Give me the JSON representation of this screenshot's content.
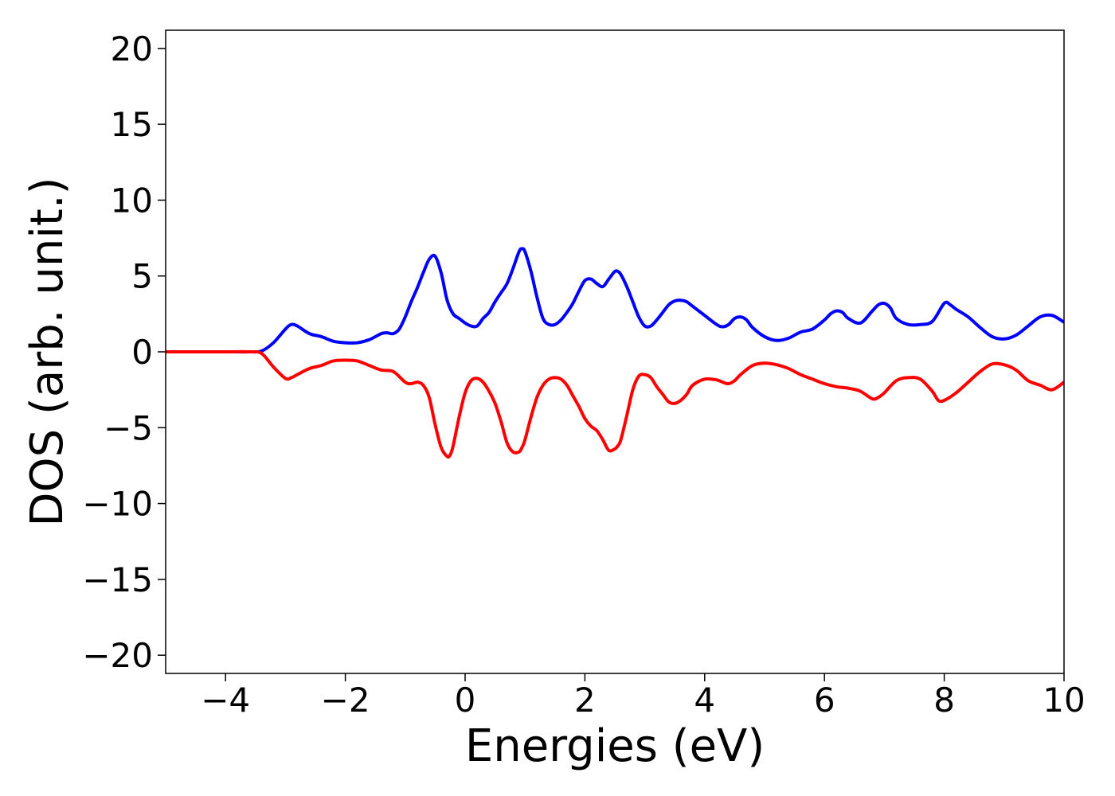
{
  "chart_data": {
    "type": "line",
    "title": "",
    "xlabel": "Energies (eV)",
    "ylabel": "DOS (arb. unit.)",
    "xlim": [
      -5,
      10
    ],
    "ylim": [
      -21.2,
      21.2
    ],
    "xticks": [
      -4,
      -2,
      0,
      2,
      4,
      6,
      8,
      10
    ],
    "xtick_labels": [
      "−4",
      "−2",
      "0",
      "2",
      "4",
      "6",
      "8",
      "10"
    ],
    "yticks": [
      20,
      15,
      10,
      5,
      0,
      -5,
      -10,
      -15,
      -20
    ],
    "ytick_labels": [
      "20",
      "15",
      "10",
      "5",
      "0",
      "−5",
      "−10",
      "−15",
      "−20"
    ],
    "grid": false,
    "legend": "none",
    "series": [
      {
        "color": "#0000ff",
        "x": [
          -5,
          -4,
          -3.6,
          -3.4,
          -3.2,
          -3.0,
          -2.9,
          -2.8,
          -2.6,
          -2.4,
          -2.2,
          -2.0,
          -1.8,
          -1.6,
          -1.4,
          -1.3,
          -1.2,
          -1.1,
          -1.0,
          -0.9,
          -0.8,
          -0.7,
          -0.6,
          -0.5,
          -0.4,
          -0.3,
          -0.2,
          -0.1,
          0.0,
          0.1,
          0.2,
          0.3,
          0.4,
          0.5,
          0.6,
          0.7,
          0.8,
          0.9,
          0.95,
          1.0,
          1.1,
          1.2,
          1.3,
          1.4,
          1.5,
          1.6,
          1.7,
          1.8,
          1.9,
          2.0,
          2.1,
          2.2,
          2.3,
          2.4,
          2.5,
          2.55,
          2.6,
          2.7,
          2.8,
          2.9,
          3.0,
          3.1,
          3.2,
          3.3,
          3.4,
          3.5,
          3.6,
          3.7,
          3.8,
          4.0,
          4.2,
          4.3,
          4.4,
          4.5,
          4.6,
          4.7,
          4.8,
          5.0,
          5.2,
          5.4,
          5.6,
          5.8,
          6.0,
          6.1,
          6.2,
          6.3,
          6.4,
          6.6,
          6.8,
          6.9,
          7.0,
          7.1,
          7.2,
          7.4,
          7.6,
          7.8,
          8.0,
          8.1,
          8.2,
          8.4,
          8.6,
          8.8,
          9.0,
          9.2,
          9.4,
          9.6,
          9.8,
          10.0
        ],
        "y": [
          0,
          0,
          0,
          0.05,
          0.6,
          1.5,
          1.8,
          1.7,
          1.2,
          1.0,
          0.7,
          0.6,
          0.6,
          0.8,
          1.2,
          1.25,
          1.2,
          1.5,
          2.3,
          3.3,
          4.2,
          5.2,
          6.1,
          6.3,
          5.2,
          3.4,
          2.5,
          2.2,
          1.9,
          1.7,
          1.7,
          2.2,
          2.6,
          3.3,
          3.9,
          4.5,
          5.5,
          6.6,
          6.8,
          6.6,
          5.3,
          3.6,
          2.2,
          1.8,
          1.8,
          2.1,
          2.6,
          3.2,
          4.0,
          4.7,
          4.8,
          4.5,
          4.3,
          4.8,
          5.3,
          5.3,
          5.1,
          4.3,
          3.3,
          2.3,
          1.7,
          1.7,
          2.1,
          2.6,
          3.1,
          3.35,
          3.4,
          3.3,
          3.0,
          2.4,
          1.8,
          1.65,
          1.8,
          2.2,
          2.3,
          2.1,
          1.6,
          1.0,
          0.75,
          0.9,
          1.3,
          1.5,
          2.1,
          2.5,
          2.7,
          2.6,
          2.2,
          1.9,
          2.7,
          3.1,
          3.2,
          2.9,
          2.2,
          1.8,
          1.8,
          2.0,
          3.2,
          3.1,
          2.8,
          2.3,
          1.6,
          1.0,
          0.85,
          1.1,
          1.7,
          2.3,
          2.4,
          1.95
        ]
      },
      {
        "color": "#ff0000",
        "x": [
          -5,
          -4,
          -3.6,
          -3.4,
          -3.2,
          -3.0,
          -2.9,
          -2.8,
          -2.6,
          -2.4,
          -2.2,
          -2.0,
          -1.8,
          -1.6,
          -1.4,
          -1.2,
          -1.0,
          -0.9,
          -0.8,
          -0.7,
          -0.6,
          -0.5,
          -0.4,
          -0.3,
          -0.25,
          -0.2,
          -0.1,
          0.0,
          0.1,
          0.2,
          0.3,
          0.4,
          0.5,
          0.6,
          0.7,
          0.8,
          0.9,
          0.95,
          1.0,
          1.1,
          1.2,
          1.3,
          1.4,
          1.5,
          1.6,
          1.7,
          1.8,
          1.9,
          2.0,
          2.1,
          2.2,
          2.3,
          2.4,
          2.5,
          2.55,
          2.6,
          2.7,
          2.8,
          2.9,
          3.0,
          3.1,
          3.2,
          3.3,
          3.4,
          3.5,
          3.6,
          3.7,
          3.8,
          4.0,
          4.2,
          4.3,
          4.4,
          4.5,
          4.6,
          4.8,
          5.0,
          5.2,
          5.4,
          5.6,
          5.8,
          6.0,
          6.2,
          6.4,
          6.6,
          6.8,
          6.9,
          7.0,
          7.2,
          7.4,
          7.6,
          7.8,
          7.9,
          8.0,
          8.2,
          8.4,
          8.6,
          8.8,
          9.0,
          9.2,
          9.4,
          9.6,
          9.8,
          10.0
        ],
        "y": [
          0,
          0,
          0,
          -0.1,
          -1.0,
          -1.75,
          -1.7,
          -1.5,
          -1.1,
          -0.9,
          -0.6,
          -0.55,
          -0.6,
          -0.9,
          -1.2,
          -1.3,
          -2.0,
          -2.1,
          -2.0,
          -2.2,
          -3.0,
          -4.8,
          -6.3,
          -6.9,
          -6.8,
          -6.2,
          -4.3,
          -2.7,
          -1.9,
          -1.75,
          -2.0,
          -2.6,
          -3.4,
          -4.6,
          -6.0,
          -6.6,
          -6.6,
          -6.3,
          -5.8,
          -4.3,
          -3.0,
          -2.2,
          -1.8,
          -1.7,
          -1.8,
          -2.2,
          -2.9,
          -3.6,
          -4.4,
          -4.9,
          -5.2,
          -5.8,
          -6.5,
          -6.4,
          -6.2,
          -5.8,
          -4.2,
          -2.5,
          -1.6,
          -1.5,
          -1.7,
          -2.3,
          -2.8,
          -3.3,
          -3.4,
          -3.2,
          -2.8,
          -2.2,
          -1.8,
          -1.85,
          -2.0,
          -2.1,
          -1.9,
          -1.5,
          -0.9,
          -0.75,
          -0.85,
          -1.1,
          -1.5,
          -1.8,
          -2.1,
          -2.3,
          -2.4,
          -2.6,
          -3.1,
          -3.0,
          -2.7,
          -1.9,
          -1.7,
          -1.8,
          -2.6,
          -3.2,
          -3.2,
          -2.7,
          -2.0,
          -1.3,
          -0.8,
          -0.85,
          -1.2,
          -1.9,
          -2.2,
          -2.5,
          -2.0
        ]
      }
    ]
  }
}
